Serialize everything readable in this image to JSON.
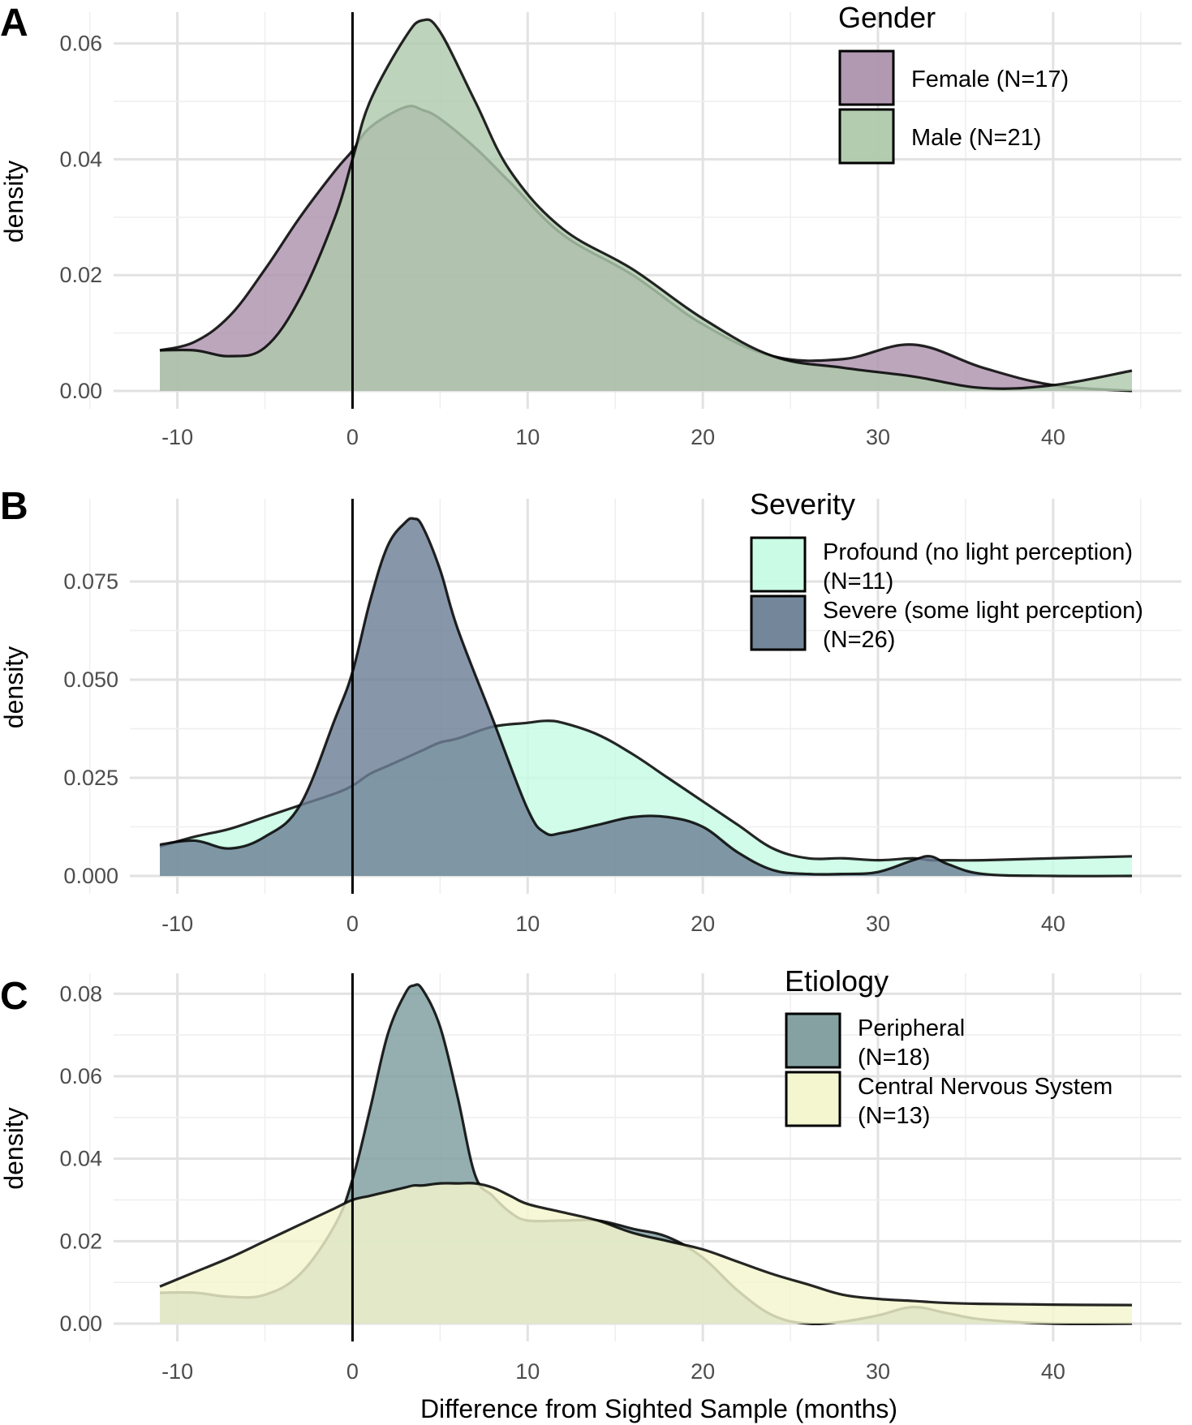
{
  "figure": {
    "xlabel": "Difference from Sighted Sample (months)"
  },
  "chart_data": [
    {
      "type": "area",
      "panel_label": "A",
      "ylabel": "density",
      "xlim": [
        -11,
        44.5
      ],
      "ylim": [
        0,
        0.064
      ],
      "x_ticks": [
        -10,
        0,
        10,
        20,
        30,
        40
      ],
      "x_tick_labels": [
        "-10",
        "0",
        "10",
        "20",
        "30",
        "40"
      ],
      "y_ticks": [
        0,
        0.02,
        0.04,
        0.06
      ],
      "y_tick_labels": [
        "0.00",
        "0.02",
        "0.04",
        "0.06"
      ],
      "vline_x": 0,
      "grid": true,
      "legend": {
        "title": "Gender",
        "position": "top-right"
      },
      "x": [
        -11,
        -9,
        -7,
        -5,
        -3,
        -1,
        0,
        1,
        3,
        4,
        5,
        7,
        9,
        12,
        16,
        20,
        24,
        28,
        32,
        36,
        40,
        44.5
      ],
      "series": [
        {
          "name": "Female (N=17)",
          "color": "#ad93ad",
          "values": [
            0.007,
            0.0085,
            0.013,
            0.021,
            0.03,
            0.038,
            0.0415,
            0.0455,
            0.049,
            0.0485,
            0.047,
            0.042,
            0.036,
            0.027,
            0.02,
            0.0115,
            0.006,
            0.0055,
            0.008,
            0.004,
            0.001,
            0.0
          ]
        },
        {
          "name": "Male (N=21)",
          "color": "#afc9ac",
          "values": [
            0.007,
            0.007,
            0.006,
            0.0075,
            0.016,
            0.03,
            0.04,
            0.05,
            0.061,
            0.064,
            0.062,
            0.05,
            0.038,
            0.028,
            0.021,
            0.0125,
            0.006,
            0.004,
            0.0025,
            0.0005,
            0.001,
            0.0035
          ]
        }
      ]
    },
    {
      "type": "area",
      "panel_label": "B",
      "ylabel": "density",
      "xlim": [
        -11,
        44.5
      ],
      "ylim": [
        0,
        0.094
      ],
      "x_ticks": [
        -10,
        0,
        10,
        20,
        30,
        40
      ],
      "x_tick_labels": [
        "-10",
        "0",
        "10",
        "20",
        "30",
        "40"
      ],
      "y_ticks": [
        0,
        0.025,
        0.05,
        0.075
      ],
      "y_tick_labels": [
        "0.000",
        "0.025",
        "0.050",
        "0.075"
      ],
      "vline_x": 0,
      "grid": true,
      "legend": {
        "title": "Severity",
        "position": "top-right"
      },
      "x": [
        -11,
        -9,
        -7,
        -5,
        -3,
        -1,
        0,
        1,
        2,
        3,
        3.5,
        4,
        5,
        6,
        8,
        10,
        11,
        12,
        14,
        16,
        18,
        20,
        22,
        24,
        26,
        28,
        30,
        32,
        33,
        34,
        36,
        40,
        44.5
      ],
      "series": [
        {
          "name": "Profound (no light perception)|(N=11)",
          "color": "#c6fbe4",
          "values": [
            0.0075,
            0.01,
            0.012,
            0.015,
            0.018,
            0.021,
            0.023,
            0.026,
            0.028,
            0.03,
            0.031,
            0.032,
            0.034,
            0.035,
            0.038,
            0.039,
            0.0395,
            0.039,
            0.036,
            0.031,
            0.025,
            0.019,
            0.013,
            0.007,
            0.0045,
            0.0045,
            0.004,
            0.0045,
            0.004,
            0.004,
            0.004,
            0.0045,
            0.005
          ]
        },
        {
          "name": "Severe (some light perception)|(N=26)",
          "color": "#6c7f95",
          "values": [
            0.008,
            0.009,
            0.007,
            0.01,
            0.018,
            0.04,
            0.052,
            0.07,
            0.084,
            0.09,
            0.091,
            0.089,
            0.078,
            0.063,
            0.04,
            0.017,
            0.011,
            0.011,
            0.013,
            0.015,
            0.015,
            0.0125,
            0.006,
            0.0015,
            0.0005,
            0.0005,
            0.001,
            0.004,
            0.005,
            0.003,
            0.0005,
            0.0,
            0.0
          ]
        }
      ]
    },
    {
      "type": "area",
      "panel_label": "C",
      "ylabel": "density",
      "xlim": [
        -11,
        44.5
      ],
      "ylim": [
        0,
        0.083
      ],
      "x_ticks": [
        -10,
        0,
        10,
        20,
        30,
        40
      ],
      "x_tick_labels": [
        "-10",
        "0",
        "10",
        "20",
        "30",
        "40"
      ],
      "y_ticks": [
        0,
        0.02,
        0.04,
        0.06,
        0.08
      ],
      "y_tick_labels": [
        "0.00",
        "0.02",
        "0.04",
        "0.06",
        "0.08"
      ],
      "vline_x": 0,
      "grid": true,
      "legend": {
        "title": "Etiology",
        "position": "top-right"
      },
      "x": [
        -11,
        -9,
        -7,
        -5,
        -3,
        -1,
        0,
        1,
        2,
        3,
        3.5,
        4,
        5,
        6,
        7,
        8,
        9,
        10,
        12,
        14,
        16,
        18,
        20,
        22,
        24,
        26,
        28,
        30,
        32,
        34,
        36,
        40,
        44.5
      ],
      "series": [
        {
          "name": "Peripheral|(N=18)",
          "color": "#7e9c9d",
          "values": [
            0.0075,
            0.0075,
            0.0065,
            0.007,
            0.012,
            0.024,
            0.035,
            0.052,
            0.07,
            0.08,
            0.082,
            0.081,
            0.072,
            0.055,
            0.036,
            0.031,
            0.027,
            0.025,
            0.025,
            0.025,
            0.023,
            0.021,
            0.016,
            0.008,
            0.002,
            0.0,
            0.0005,
            0.002,
            0.004,
            0.0025,
            0.001,
            0.0,
            0.0
          ]
        },
        {
          "name": "Central Nervous System|(N=13)",
          "color": "#f3f5cd",
          "values": [
            0.009,
            0.0125,
            0.016,
            0.02,
            0.024,
            0.028,
            0.03,
            0.031,
            0.032,
            0.033,
            0.0335,
            0.0335,
            0.034,
            0.034,
            0.034,
            0.033,
            0.031,
            0.029,
            0.027,
            0.025,
            0.022,
            0.02,
            0.018,
            0.015,
            0.012,
            0.0095,
            0.007,
            0.006,
            0.0055,
            0.005,
            0.0048,
            0.0046,
            0.0045
          ]
        }
      ]
    }
  ]
}
